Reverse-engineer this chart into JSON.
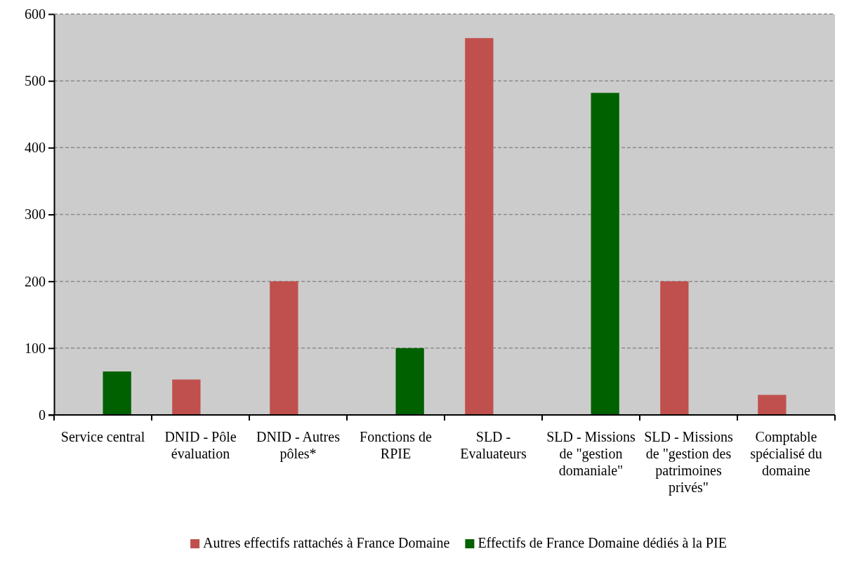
{
  "chart_data": {
    "type": "bar",
    "categories": [
      "Service central",
      "DNID - Pôle évaluation",
      "DNID - Autres pôles*",
      "Fonctions de RPIE",
      "SLD - Evaluateurs",
      "SLD - Missions de \"gestion domaniale\"",
      "SLD - Missions de \"gestion des patrimoines privés\"",
      "Comptable spécialisé du domaine"
    ],
    "series": [
      {
        "name": "Autres effectifs rattachés à France Domaine",
        "color": "#c0504d",
        "values": [
          null,
          53,
          200,
          null,
          564,
          null,
          200,
          30
        ]
      },
      {
        "name": "Effectifs de France Domaine dédiés à la PIE",
        "color": "#006100",
        "values": [
          65,
          null,
          null,
          100,
          null,
          482,
          null,
          null
        ]
      }
    ],
    "ylim": [
      0,
      600
    ],
    "yticks": [
      0,
      100,
      200,
      300,
      400,
      500,
      600
    ],
    "grid": "y",
    "legend": "bottom"
  }
}
